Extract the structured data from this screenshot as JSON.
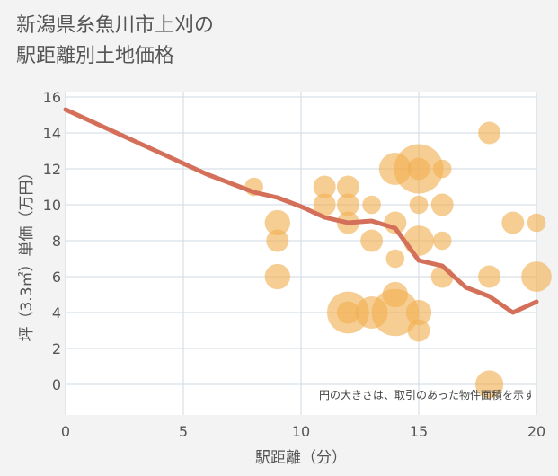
{
  "title_lines": [
    "新潟県糸魚川市上刈の",
    "駅距離別土地価格"
  ],
  "chart_data": {
    "type": "scatter",
    "title": "新潟県糸魚川市上刈の駅距離別土地価格",
    "xlabel": "駅距離（分）",
    "ylabel": "坪（3.3㎡）単価（万円）",
    "xlim": [
      0,
      20
    ],
    "ylim": [
      -1.7,
      16.3
    ],
    "x_ticks": [
      0,
      5,
      10,
      15,
      20
    ],
    "y_ticks": [
      0,
      2,
      4,
      6,
      8,
      10,
      12,
      14,
      16
    ],
    "grid": true,
    "note": "円の大きさは、取引のあった物件面積を示す",
    "colors": {
      "bubble": "#f0b050",
      "trend": "#d4705a",
      "grid": "#cfd8e3"
    },
    "points": [
      {
        "x": 8,
        "y": 11,
        "size": 1
      },
      {
        "x": 9,
        "y": 9,
        "size": 3
      },
      {
        "x": 9,
        "y": 8,
        "size": 2
      },
      {
        "x": 9,
        "y": 6,
        "size": 3
      },
      {
        "x": 11,
        "y": 11,
        "size": 2
      },
      {
        "x": 11,
        "y": 10,
        "size": 2
      },
      {
        "x": 12,
        "y": 11,
        "size": 2
      },
      {
        "x": 12,
        "y": 10,
        "size": 2
      },
      {
        "x": 12,
        "y": 9,
        "size": 2
      },
      {
        "x": 12,
        "y": 4,
        "size": 12
      },
      {
        "x": 12,
        "y": 4,
        "size": 2
      },
      {
        "x": 13,
        "y": 10,
        "size": 1
      },
      {
        "x": 13,
        "y": 8,
        "size": 2
      },
      {
        "x": 13,
        "y": 4,
        "size": 6
      },
      {
        "x": 14,
        "y": 12,
        "size": 6
      },
      {
        "x": 14,
        "y": 9,
        "size": 2
      },
      {
        "x": 14,
        "y": 7,
        "size": 1
      },
      {
        "x": 14,
        "y": 5,
        "size": 3
      },
      {
        "x": 14,
        "y": 4,
        "size": 16
      },
      {
        "x": 15,
        "y": 12,
        "size": 18
      },
      {
        "x": 15,
        "y": 12,
        "size": 2
      },
      {
        "x": 15,
        "y": 10,
        "size": 1
      },
      {
        "x": 15,
        "y": 8,
        "size": 5
      },
      {
        "x": 15,
        "y": 4,
        "size": 3
      },
      {
        "x": 15,
        "y": 3,
        "size": 2
      },
      {
        "x": 16,
        "y": 12,
        "size": 1
      },
      {
        "x": 16,
        "y": 10,
        "size": 2
      },
      {
        "x": 16,
        "y": 8,
        "size": 1
      },
      {
        "x": 16,
        "y": 6,
        "size": 2
      },
      {
        "x": 18,
        "y": 14,
        "size": 2
      },
      {
        "x": 18,
        "y": 6,
        "size": 2
      },
      {
        "x": 18,
        "y": 0,
        "size": 4
      },
      {
        "x": 19,
        "y": 9,
        "size": 2
      },
      {
        "x": 20,
        "y": 9,
        "size": 1
      },
      {
        "x": 20,
        "y": 6,
        "size": 5
      }
    ],
    "trend": {
      "x": [
        0,
        1,
        2,
        3,
        4,
        5,
        6,
        7,
        8,
        9,
        10,
        11,
        12,
        13,
        14,
        15,
        16,
        17,
        18,
        19,
        20
      ],
      "y": [
        15.3,
        14.7,
        14.1,
        13.5,
        12.9,
        12.3,
        11.7,
        11.2,
        10.7,
        10.4,
        9.9,
        9.3,
        9.0,
        9.1,
        8.7,
        6.9,
        6.6,
        5.4,
        4.9,
        4.0,
        4.6
      ]
    }
  }
}
